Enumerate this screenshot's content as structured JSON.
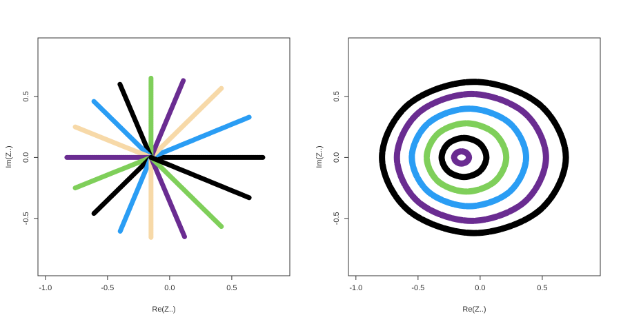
{
  "chart_data": [
    {
      "type": "line",
      "closed": false,
      "xlabel": "Re(Z..)",
      "ylabel": "Im(Z..)",
      "xlim": [
        -1.06,
        0.967
      ],
      "ylim": [
        -0.97,
        0.98
      ],
      "xticks": [
        {
          "value": -1.0,
          "label": "-1.0"
        },
        {
          "value": -0.5,
          "label": "-0.5"
        },
        {
          "value": 0.0,
          "label": "0.0"
        },
        {
          "value": 0.5,
          "label": "0.5"
        }
      ],
      "yticks": [
        {
          "value": -0.5,
          "label": "-0.5"
        },
        {
          "value": 0.0,
          "label": "0.0"
        },
        {
          "value": 0.5,
          "label": "0.5"
        }
      ],
      "lines": [
        {
          "color": "#000000",
          "x": [
            -0.15,
            0.75
          ],
          "y": [
            0,
            0
          ]
        },
        {
          "color": "#2a9df4",
          "x": [
            -0.15,
            0.64
          ],
          "y": [
            0,
            0.33
          ]
        },
        {
          "color": "#f7d9a8",
          "x": [
            -0.15,
            0.42
          ],
          "y": [
            0,
            0.57
          ]
        },
        {
          "color": "#6a2c91",
          "x": [
            -0.15,
            0.11
          ],
          "y": [
            0,
            0.63
          ]
        },
        {
          "color": "#7fcf5a",
          "x": [
            -0.15,
            -0.15
          ],
          "y": [
            0,
            0.65
          ]
        },
        {
          "color": "#000000",
          "x": [
            -0.15,
            -0.4
          ],
          "y": [
            0,
            0.6
          ]
        },
        {
          "color": "#2a9df4",
          "x": [
            -0.15,
            -0.61
          ],
          "y": [
            0,
            0.46
          ]
        },
        {
          "color": "#f7d9a8",
          "x": [
            -0.15,
            -0.76
          ],
          "y": [
            0,
            0.25
          ]
        },
        {
          "color": "#6a2c91",
          "x": [
            -0.15,
            -0.83
          ],
          "y": [
            0,
            0
          ]
        },
        {
          "color": "#7fcf5a",
          "x": [
            -0.15,
            -0.76
          ],
          "y": [
            0,
            -0.25
          ]
        },
        {
          "color": "#000000",
          "x": [
            -0.15,
            -0.61
          ],
          "y": [
            0,
            -0.46
          ]
        },
        {
          "color": "#2a9df4",
          "x": [
            -0.15,
            -0.4
          ],
          "y": [
            0,
            -0.61
          ]
        },
        {
          "color": "#f7d9a8",
          "x": [
            -0.15,
            -0.15
          ],
          "y": [
            0,
            -0.66
          ]
        },
        {
          "color": "#6a2c91",
          "x": [
            -0.15,
            0.12
          ],
          "y": [
            0,
            -0.65
          ]
        },
        {
          "color": "#7fcf5a",
          "x": [
            -0.15,
            0.42
          ],
          "y": [
            0,
            -0.57
          ]
        },
        {
          "color": "#000000",
          "x": [
            -0.15,
            0.64
          ],
          "y": [
            0,
            -0.33
          ]
        }
      ]
    },
    {
      "type": "line",
      "closed": true,
      "xlabel": "Re(Z..)",
      "ylabel": "Im(Z..)",
      "xlim": [
        -1.06,
        0.967
      ],
      "ylim": [
        -0.97,
        0.98
      ],
      "xticks": [
        {
          "value": -1.0,
          "label": "-1.0"
        },
        {
          "value": -0.5,
          "label": "-0.5"
        },
        {
          "value": 0.0,
          "label": "0.0"
        },
        {
          "value": 0.5,
          "label": "0.5"
        }
      ],
      "yticks": [
        {
          "value": -0.5,
          "label": "-0.5"
        },
        {
          "value": 0.0,
          "label": "0.0"
        },
        {
          "value": 0.5,
          "label": "0.5"
        }
      ],
      "lines": [
        {
          "color": "#6a2c91",
          "x": [
            -0.09,
            -0.108,
            -0.15,
            -0.192,
            -0.21,
            -0.192,
            -0.15,
            -0.108
          ],
          "y": [
            0,
            0.035,
            0.05,
            0.035,
            0,
            -0.035,
            -0.05,
            -0.035
          ]
        },
        {
          "color": "#000000",
          "x": [
            0.05,
            -0.003,
            -0.13,
            -0.257,
            -0.31,
            -0.257,
            -0.13,
            -0.003
          ],
          "y": [
            0,
            0.113,
            0.16,
            0.113,
            0,
            -0.113,
            -0.16,
            -0.113
          ]
        },
        {
          "color": "#7fcf5a",
          "x": [
            0.21,
            0.116,
            -0.11,
            -0.336,
            -0.43,
            -0.336,
            -0.11,
            0.116
          ],
          "y": [
            0,
            0.198,
            0.28,
            0.198,
            0,
            -0.198,
            -0.28,
            -0.198
          ]
        },
        {
          "color": "#2a9df4",
          "x": [
            0.37,
            0.235,
            -0.09,
            -0.415,
            -0.55,
            -0.415,
            -0.09,
            0.235
          ],
          "y": [
            0,
            0.283,
            0.4,
            0.283,
            0,
            -0.283,
            -0.4,
            -0.283
          ]
        },
        {
          "color": "#6a2c91",
          "x": [
            0.53,
            0.354,
            -0.07,
            -0.494,
            -0.67,
            -0.494,
            -0.07,
            0.354
          ],
          "y": [
            0,
            0.368,
            0.52,
            0.368,
            0,
            -0.368,
            -0.52,
            -0.368
          ]
        },
        {
          "color": "#000000",
          "x": [
            0.69,
            0.473,
            -0.05,
            -0.573,
            -0.79,
            -0.573,
            -0.05,
            0.473
          ],
          "y": [
            0,
            0.438,
            0.62,
            0.438,
            0,
            -0.438,
            -0.62,
            -0.438
          ]
        }
      ]
    }
  ]
}
